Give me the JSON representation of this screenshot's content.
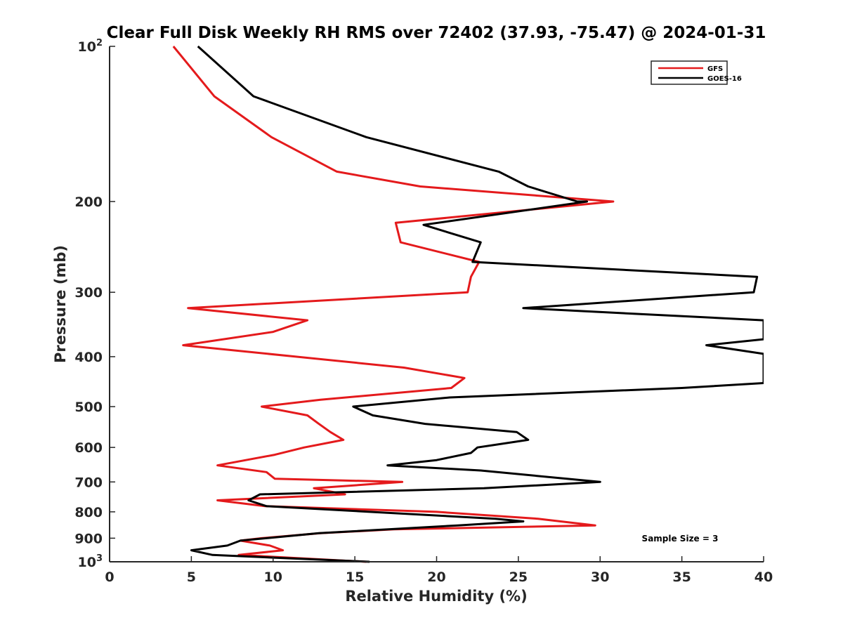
{
  "chart_data": {
    "type": "line",
    "title": "Clear Full Disk Weekly RH RMS over 72402 (37.93, -75.47) @ 2024-01-31",
    "xlabel": "Relative Humidity (%)",
    "ylabel": "Pressure (mb)",
    "xlim": [
      0,
      40
    ],
    "ylim": [
      100,
      1000
    ],
    "yscale": "log",
    "yreversed": true,
    "grid": false,
    "legend_position": "top-right",
    "annotation": "Sample Size = 3",
    "xticks": [
      {
        "value": 0,
        "label": "0"
      },
      {
        "value": 5,
        "label": "5"
      },
      {
        "value": 10,
        "label": "10"
      },
      {
        "value": 15,
        "label": "15"
      },
      {
        "value": 20,
        "label": "20"
      },
      {
        "value": 25,
        "label": "25"
      },
      {
        "value": 30,
        "label": "30"
      },
      {
        "value": 35,
        "label": "35"
      },
      {
        "value": 40,
        "label": "40"
      }
    ],
    "yticks": [
      {
        "value": 100,
        "base": "10",
        "sup": "2"
      },
      {
        "value": 200,
        "label": "200"
      },
      {
        "value": 300,
        "label": "300"
      },
      {
        "value": 400,
        "label": "400"
      },
      {
        "value": 500,
        "label": "500"
      },
      {
        "value": 600,
        "label": "600"
      },
      {
        "value": 700,
        "label": "700"
      },
      {
        "value": 800,
        "label": "800"
      },
      {
        "value": 900,
        "label": "900"
      },
      {
        "value": 1000,
        "base": "10",
        "sup": "3"
      }
    ],
    "series": [
      {
        "name": "GFS",
        "color": "#e41a1c",
        "points": [
          [
            3.9,
            100
          ],
          [
            6.4,
            125
          ],
          [
            9.9,
            150
          ],
          [
            13.9,
            175
          ],
          [
            19.0,
            187
          ],
          [
            30.8,
            200
          ],
          [
            17.5,
            220
          ],
          [
            17.8,
            240
          ],
          [
            22.6,
            262
          ],
          [
            22.1,
            280
          ],
          [
            21.9,
            300
          ],
          [
            4.8,
            322
          ],
          [
            12.1,
            340
          ],
          [
            10.0,
            358
          ],
          [
            4.5,
            380
          ],
          [
            18.0,
            420
          ],
          [
            21.7,
            440
          ],
          [
            20.9,
            460
          ],
          [
            12.9,
            485
          ],
          [
            9.3,
            500
          ],
          [
            12.1,
            520
          ],
          [
            12.8,
            540
          ],
          [
            13.5,
            560
          ],
          [
            14.3,
            580
          ],
          [
            11.9,
            600
          ],
          [
            10.1,
            620
          ],
          [
            6.6,
            650
          ],
          [
            9.6,
            670
          ],
          [
            10.1,
            690
          ],
          [
            17.9,
            700
          ],
          [
            12.5,
            720
          ],
          [
            14.4,
            740
          ],
          [
            6.6,
            760
          ],
          [
            9.5,
            780
          ],
          [
            20.0,
            800
          ],
          [
            26.2,
            825
          ],
          [
            29.7,
            850
          ],
          [
            17.4,
            865
          ],
          [
            12.9,
            880
          ],
          [
            9.3,
            900
          ],
          [
            8.0,
            910
          ],
          [
            9.8,
            930
          ],
          [
            10.6,
            950
          ],
          [
            7.9,
            970
          ],
          [
            15.7,
            1000
          ]
        ]
      },
      {
        "name": "GOES-16",
        "color": "#000000",
        "points": [
          [
            5.4,
            100
          ],
          [
            8.8,
            125
          ],
          [
            15.7,
            150
          ],
          [
            23.8,
            175
          ],
          [
            25.6,
            187
          ],
          [
            28.6,
            200
          ],
          [
            29.2,
            200
          ],
          [
            19.2,
            222
          ],
          [
            22.7,
            240
          ],
          [
            22.2,
            262
          ],
          [
            39.6,
            280
          ],
          [
            39.4,
            300
          ],
          [
            25.3,
            322
          ],
          [
            40.0,
            340
          ],
          [
            40.0,
            370
          ],
          [
            36.5,
            380
          ],
          [
            40.0,
            395
          ],
          [
            40.0,
            450
          ],
          [
            35.0,
            460
          ],
          [
            20.8,
            480
          ],
          [
            14.9,
            500
          ],
          [
            16.1,
            520
          ],
          [
            19.3,
            540
          ],
          [
            24.9,
            560
          ],
          [
            25.6,
            580
          ],
          [
            22.5,
            600
          ],
          [
            22.1,
            615
          ],
          [
            20.0,
            635
          ],
          [
            17.0,
            650
          ],
          [
            22.7,
            665
          ],
          [
            30.0,
            700
          ],
          [
            22.9,
            720
          ],
          [
            9.2,
            740
          ],
          [
            8.5,
            760
          ],
          [
            9.6,
            780
          ],
          [
            23.6,
            825
          ],
          [
            25.3,
            835
          ],
          [
            21.3,
            850
          ],
          [
            12.8,
            880
          ],
          [
            8.0,
            910
          ],
          [
            7.2,
            930
          ],
          [
            5.0,
            950
          ],
          [
            6.3,
            970
          ],
          [
            15.9,
            1000
          ]
        ]
      }
    ]
  }
}
